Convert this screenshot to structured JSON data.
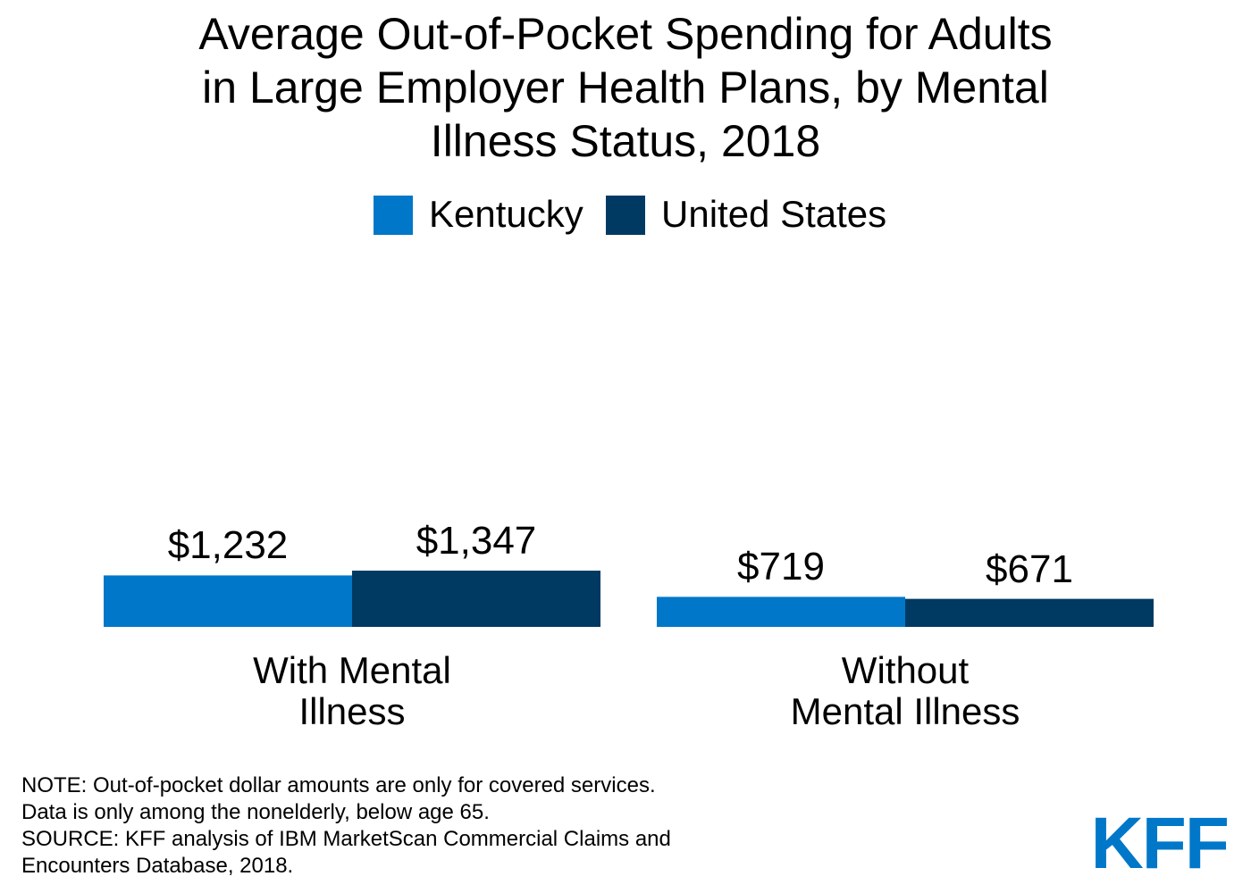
{
  "chart_data": {
    "type": "bar",
    "title": "Average Out-of-Pocket Spending for Adults in Large Employer Health Plans, by Mental Illness Status, 2018",
    "categories": [
      "With Mental Illness",
      "Without Mental Illness"
    ],
    "series": [
      {
        "name": "Kentucky",
        "color": "#0077c8",
        "values": [
          1232,
          719
        ],
        "value_labels": [
          "$1,232",
          "$719"
        ]
      },
      {
        "name": "United States",
        "color": "#003a63",
        "values": [
          1347,
          671
        ],
        "value_labels": [
          "$1,347",
          "$671"
        ]
      }
    ],
    "legend": "top",
    "notes": [
      "NOTE: Out-of-pocket dollar amounts are only for covered services.",
      "Data is only among the nonelderly, below age 65.",
      "SOURCE: KFF analysis of IBM MarketScan Commercial Claims and",
      "Encounters Database, 2018."
    ],
    "logo": "KFF"
  }
}
